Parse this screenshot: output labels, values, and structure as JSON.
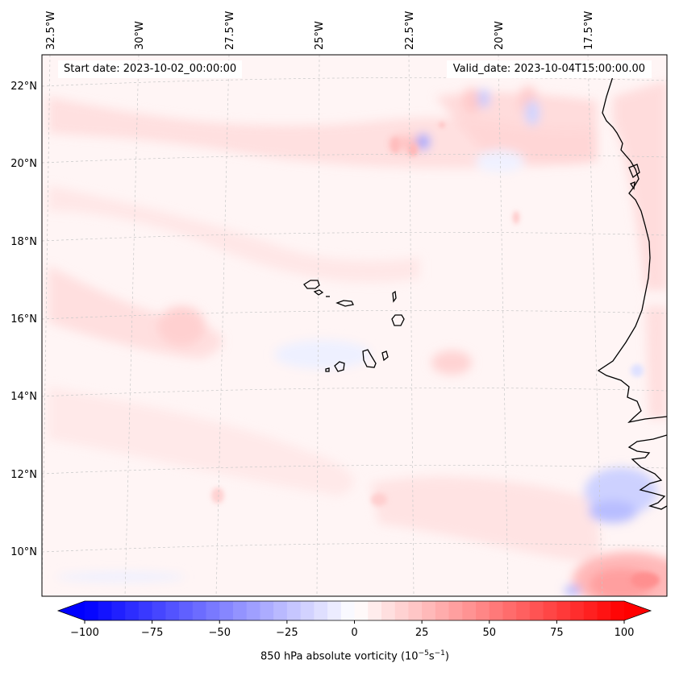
{
  "map": {
    "region": "Cape Verde / West Africa coast",
    "field": "850 hPa absolute vorticity",
    "start_date_text": "Start date: 2023-10-02_00:00:00",
    "valid_date_text": "Valid_date: 2023-10-04T15:00:00.00",
    "lon_labels": [
      "32.5°W",
      "30°W",
      "27.5°W",
      "25°W",
      "22.5°W",
      "20°W",
      "17.5°W"
    ],
    "lat_labels": [
      "22°N",
      "20°N",
      "18°N",
      "16°N",
      "14°N",
      "12°N",
      "10°N"
    ],
    "lon_values": [
      -32.5,
      -30,
      -27.5,
      -25,
      -22.5,
      -20,
      -17.5
    ],
    "lat_values": [
      22,
      20,
      18,
      16,
      14,
      12,
      10
    ],
    "extent": {
      "lon_min": -33,
      "lon_max": -15.5,
      "lat_min": 8.8,
      "lat_max": 22.8
    }
  },
  "colorbar": {
    "min": -100,
    "max": 100,
    "ticks": [
      -100,
      -75,
      -50,
      -25,
      0,
      25,
      50,
      75,
      100
    ],
    "tick_labels": [
      "−100",
      "−75",
      "−50",
      "−25",
      "0",
      "25",
      "50",
      "75",
      "100"
    ],
    "label_prefix": "850 hPa absolute vorticity (10",
    "label_exp1": "−5",
    "label_mid": "s",
    "label_exp2": "−1",
    "label_suffix": ")",
    "extend": "both",
    "colors": {
      "low": "#0000ff",
      "mid": "#ffffff",
      "high": "#ff0000"
    }
  },
  "colors": {
    "coast": "#000000",
    "grid": "#c8c8c8",
    "background_tint": "#fff4f4"
  }
}
